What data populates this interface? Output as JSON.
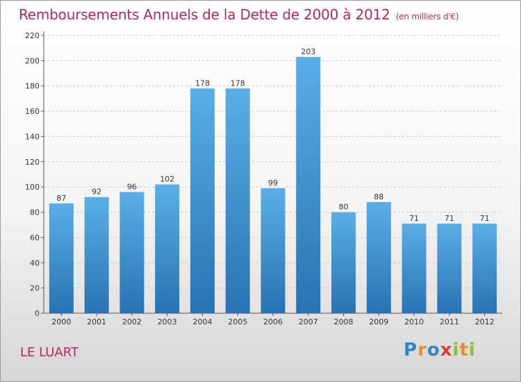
{
  "title": "Remboursements Annuels de la Dette de 2000 à 2012",
  "unit_note": "(en milliers d'€)",
  "place": "LE LUART",
  "logo": {
    "text": "Proxiti",
    "letters": [
      {
        "ch": "P",
        "color": "#2f86c8"
      },
      {
        "ch": "r",
        "color": "#e0922b"
      },
      {
        "ch": "o",
        "color": "#2f86c8"
      },
      {
        "ch": "x",
        "color": "#d9403a"
      },
      {
        "ch": "i",
        "color": "#8bbf3c"
      },
      {
        "ch": "t",
        "color": "#e0922b"
      },
      {
        "ch": "i",
        "color": "#8bbf3c"
      }
    ]
  },
  "colors": {
    "bar_light": "#5aaee8",
    "bar_dark": "#2873b3",
    "title": "#b5265e",
    "grid": "#c8c8c8",
    "axis": "#555555"
  },
  "chart_data": {
    "type": "bar",
    "categories": [
      "2000",
      "2001",
      "2002",
      "2003",
      "2004",
      "2005",
      "2006",
      "2007",
      "2008",
      "2009",
      "2010",
      "2011",
      "2012"
    ],
    "values": [
      87,
      92,
      96,
      102,
      178,
      178,
      99,
      203,
      80,
      88,
      71,
      71,
      71
    ],
    "ylim": [
      0,
      220
    ],
    "yticks": [
      0,
      20,
      40,
      60,
      80,
      100,
      120,
      140,
      160,
      180,
      200,
      220
    ],
    "grid": true,
    "data_labels": true
  }
}
